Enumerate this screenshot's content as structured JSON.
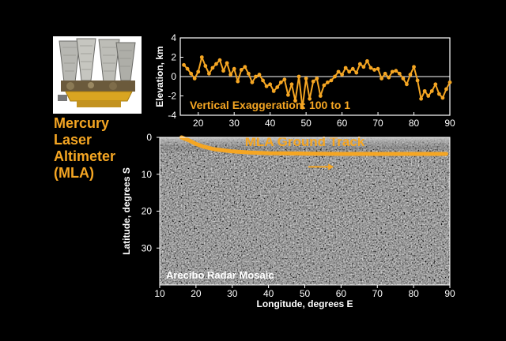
{
  "instrument": {
    "title_lines": [
      "Mercury",
      "Laser",
      "Altimeter",
      "(MLA)"
    ]
  },
  "colors": {
    "accent": "#f5a623",
    "background": "#000000",
    "axis": "#ffffff",
    "zero_line": "#ffffff"
  },
  "chart_data": [
    {
      "type": "scatter",
      "title": "",
      "ylabel": "Elevation, km",
      "annotation": "Vertical Exaggeration: 100 to 1",
      "xlim": [
        15,
        90
      ],
      "ylim": [
        -4,
        4
      ],
      "xticks": [
        20,
        30,
        40,
        50,
        60,
        70,
        80,
        90
      ],
      "yticks": [
        -4,
        -2,
        0,
        2,
        4
      ],
      "x": [
        16,
        17,
        18,
        19,
        20,
        21,
        22,
        23,
        24,
        25,
        26,
        27,
        28,
        29,
        30,
        31,
        32,
        33,
        34,
        35,
        36,
        37,
        38,
        39,
        40,
        41,
        42,
        43,
        44,
        45,
        46,
        47,
        48,
        49,
        50,
        51,
        52,
        53,
        54,
        55,
        56,
        57,
        58,
        59,
        60,
        61,
        62,
        63,
        64,
        65,
        66,
        67,
        68,
        69,
        70,
        71,
        72,
        73,
        74,
        75,
        76,
        77,
        78,
        79,
        80,
        81,
        82,
        83,
        84,
        85,
        86,
        87,
        88,
        89,
        90
      ],
      "y": [
        1.2,
        0.8,
        0.3,
        -0.2,
        0.5,
        2.0,
        1.1,
        0.3,
        0.9,
        1.3,
        1.7,
        0.6,
        1.4,
        0.2,
        0.8,
        -0.5,
        0.7,
        1.0,
        0.3,
        -0.6,
        0.0,
        0.2,
        -0.4,
        -1.0,
        -0.8,
        -1.5,
        -1.1,
        -0.6,
        -0.3,
        -1.9,
        -0.8,
        -2.5,
        0.0,
        -3.2,
        -0.2,
        -2.3,
        -0.5,
        -0.2,
        -2.0,
        -0.9,
        -0.6,
        -0.4,
        0.0,
        0.5,
        0.2,
        0.9,
        0.5,
        0.8,
        0.4,
        1.3,
        1.0,
        1.6,
        0.9,
        0.7,
        0.8,
        -0.2,
        0.3,
        -0.1,
        0.5,
        0.6,
        0.3,
        -0.2,
        -0.8,
        0.2,
        1.0,
        -0.4,
        -2.3,
        -1.5,
        -2.0,
        -1.5,
        -0.8,
        -1.8,
        -2.2,
        -1.3,
        -0.6
      ]
    },
    {
      "type": "heatmap",
      "title": "MLA Ground Track",
      "xlabel": "Longitude, degrees E",
      "ylabel": "Latitude, degrees S",
      "annotation": "Arecibo Radar Mosaic",
      "xlim": [
        10,
        90
      ],
      "ylim": [
        0,
        40
      ],
      "xticks": [
        10,
        20,
        30,
        40,
        50,
        60,
        70,
        80,
        90
      ],
      "yticks": [
        0,
        10,
        20,
        30
      ],
      "track": {
        "longitude": [
          16,
          18,
          20,
          22,
          25,
          30,
          35,
          40,
          50,
          60,
          70,
          80,
          89
        ],
        "latitude": [
          0.0,
          0.8,
          1.8,
          2.5,
          3.2,
          3.8,
          4.1,
          4.3,
          4.4,
          4.5,
          4.5,
          4.5,
          4.5
        ]
      },
      "direction_arrow": {
        "from": [
          51,
          8.0
        ],
        "to": [
          58,
          8.0
        ]
      }
    }
  ]
}
